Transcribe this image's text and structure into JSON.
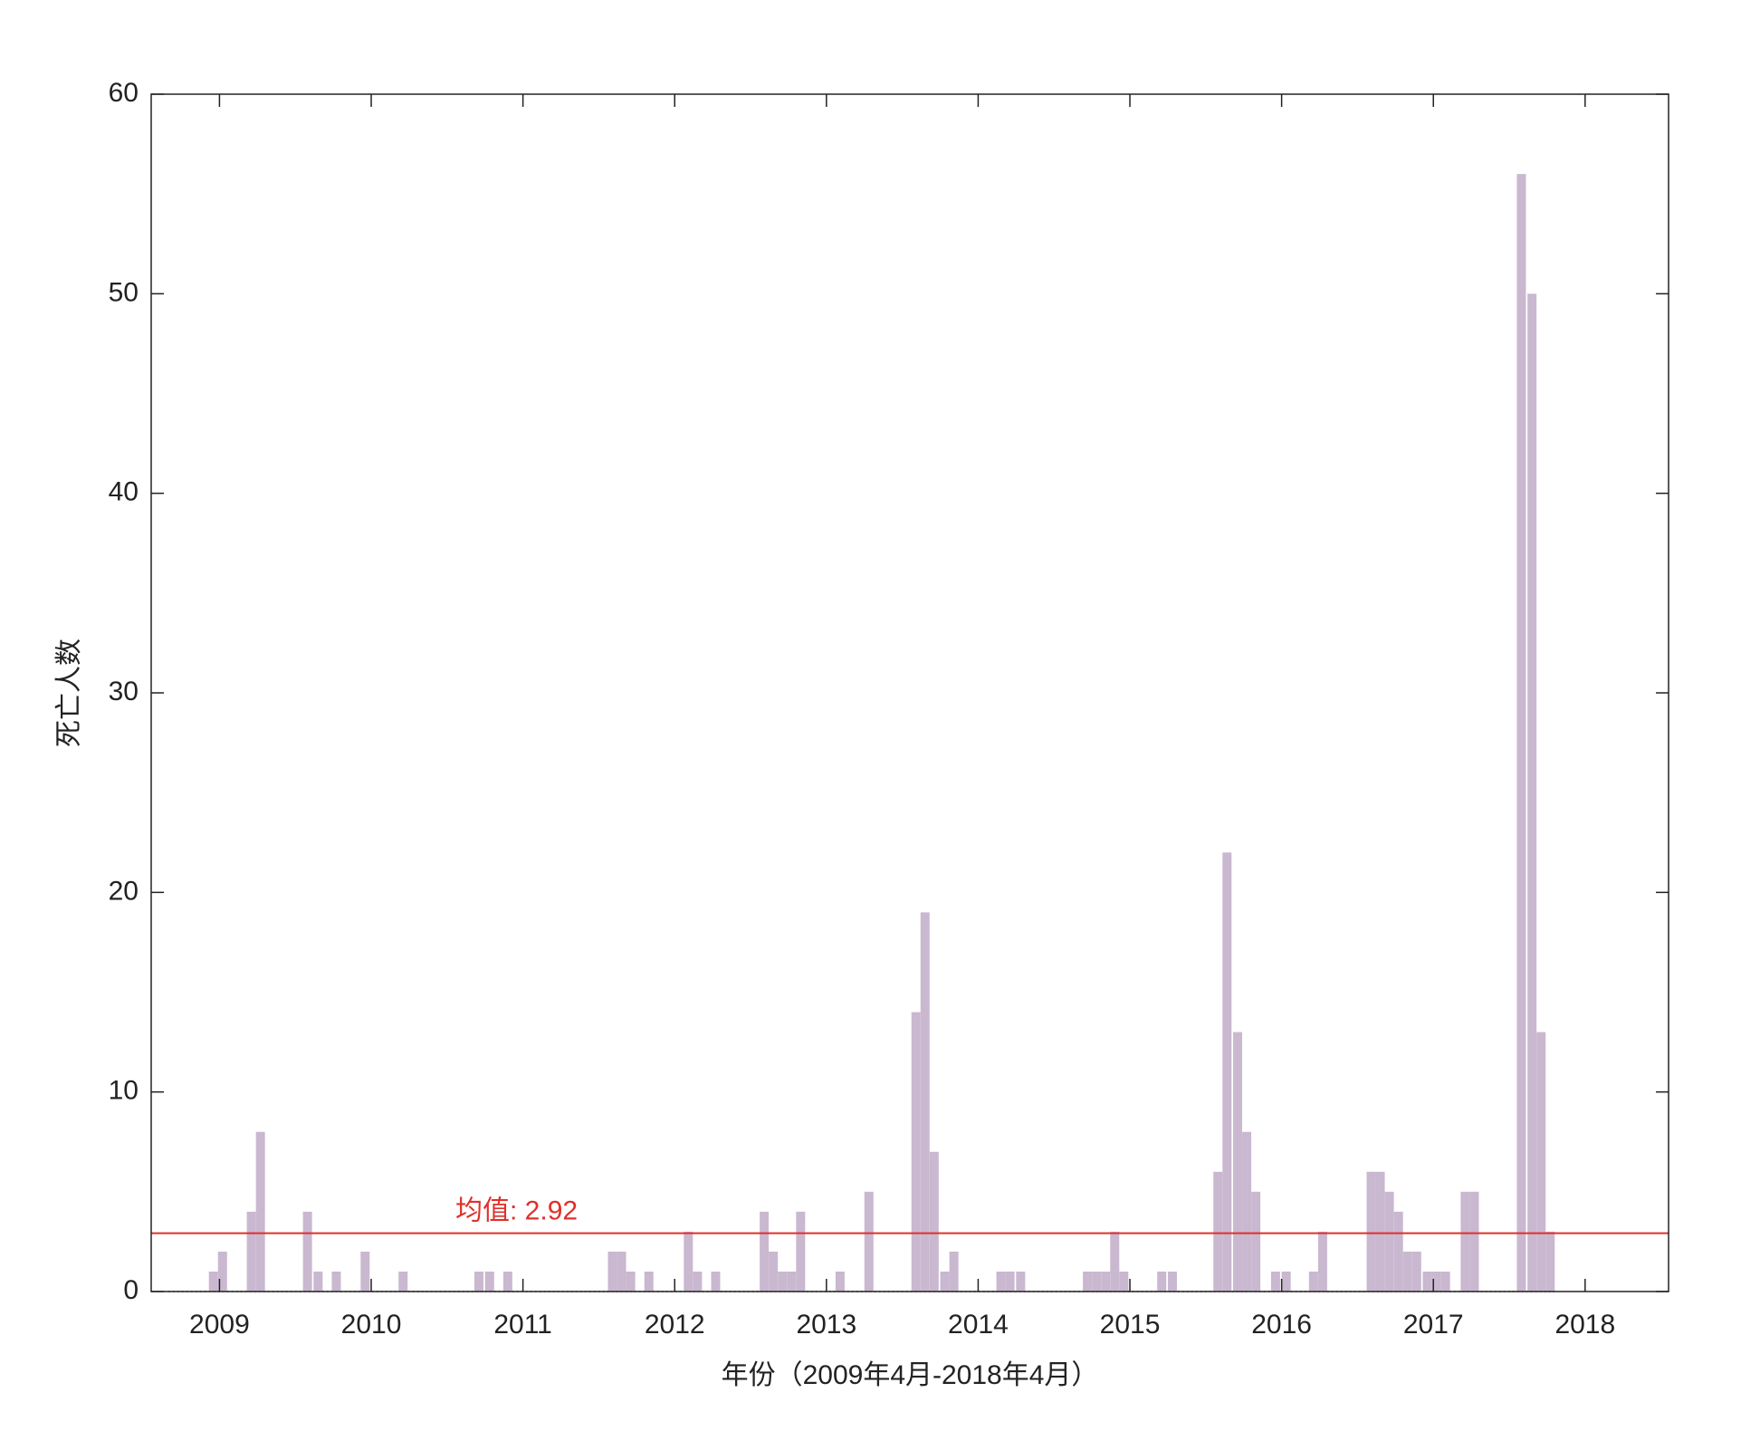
{
  "chart_data": {
    "type": "bar",
    "x_label": "年份（2009年4月-2018年4月）",
    "y_label": "死亡人数",
    "x": [
      2008.96,
      2009.02,
      2009.21,
      2009.27,
      2009.58,
      2009.65,
      2009.77,
      2009.96,
      2010.21,
      2010.71,
      2010.78,
      2010.9,
      2011.59,
      2011.65,
      2011.71,
      2011.83,
      2012.09,
      2012.15,
      2012.27,
      2012.59,
      2012.65,
      2012.71,
      2012.77,
      2012.83,
      2013.09,
      2013.28,
      2013.59,
      2013.65,
      2013.71,
      2013.78,
      2013.84,
      2014.15,
      2014.21,
      2014.28,
      2014.72,
      2014.78,
      2014.84,
      2014.9,
      2014.96,
      2015.21,
      2015.28,
      2015.58,
      2015.64,
      2015.71,
      2015.77,
      2015.83,
      2015.96,
      2016.03,
      2016.21,
      2016.27,
      2016.59,
      2016.65,
      2016.71,
      2016.77,
      2016.83,
      2016.89,
      2016.96,
      2017.02,
      2017.08,
      2017.21,
      2017.27,
      2017.58,
      2017.65,
      2017.71,
      2017.77
    ],
    "values": [
      1,
      2,
      4,
      8,
      4,
      1,
      1,
      2,
      1,
      1,
      1,
      1,
      2,
      2,
      1,
      1,
      3,
      1,
      1,
      4,
      2,
      1,
      1,
      4,
      1,
      5,
      14,
      19,
      7,
      1,
      2,
      1,
      1,
      1,
      1,
      1,
      1,
      3,
      1,
      1,
      1,
      6,
      22,
      13,
      8,
      5,
      1,
      1,
      1,
      3,
      6,
      6,
      5,
      4,
      2,
      2,
      1,
      1,
      1,
      5,
      5,
      56,
      50,
      13,
      3
    ],
    "color": "#c9b8d0",
    "mean": {
      "value": 2.92,
      "label": "均值: 2.92",
      "color": "#e0302a"
    },
    "xlim": [
      2008.55,
      2018.55
    ],
    "xticks": [
      2009,
      2010,
      2011,
      2012,
      2013,
      2014,
      2015,
      2016,
      2017,
      2018
    ],
    "ylim": [
      0,
      60
    ],
    "yticks": [
      0,
      10,
      20,
      30,
      40,
      50,
      60
    ],
    "grid": false
  }
}
